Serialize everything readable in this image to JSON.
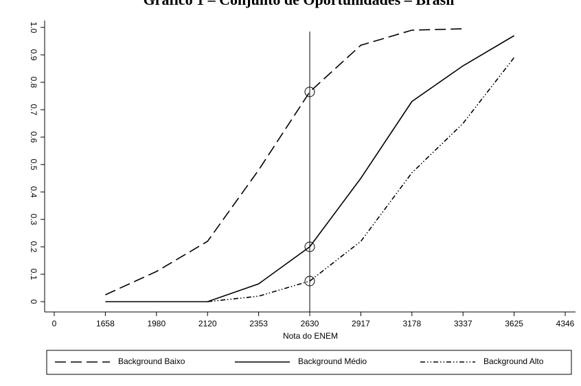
{
  "chart_data": {
    "type": "line",
    "title": "Gráfico 1 – Conjunto de Oportunidades – Brasil",
    "x_label": "Nota do ENEM",
    "categories": [
      "0",
      "1658",
      "1980",
      "2120",
      "2353",
      "2630",
      "2917",
      "3178",
      "3337",
      "3625",
      "4346"
    ],
    "series": [
      {
        "name": "Background Baixo",
        "color": "#000000",
        "style": "dashed",
        "values": [
          null,
          0.025,
          0.11,
          0.22,
          0.48,
          0.765,
          0.935,
          0.99,
          0.995,
          null,
          null
        ]
      },
      {
        "name": "Background Médio",
        "color": "#000000",
        "style": "solid",
        "values": [
          null,
          0,
          0,
          0,
          0.065,
          0.2,
          0.45,
          0.73,
          0.86,
          0.97,
          null
        ]
      },
      {
        "name": "Background Alto",
        "color": "#000000",
        "style": "dashdot",
        "values": [
          null,
          null,
          null,
          0,
          0.02,
          0.075,
          0.22,
          0.47,
          0.65,
          0.89,
          null
        ]
      }
    ],
    "vline": "2630",
    "ylim": [
      0,
      1
    ],
    "yticks": [
      0,
      0.1,
      0.2,
      0.3,
      0.4,
      0.5,
      0.6,
      0.7,
      0.8,
      0.9,
      {
        "value": 1,
        "label": "1.0"
      }
    ],
    "legend": "bottom"
  }
}
